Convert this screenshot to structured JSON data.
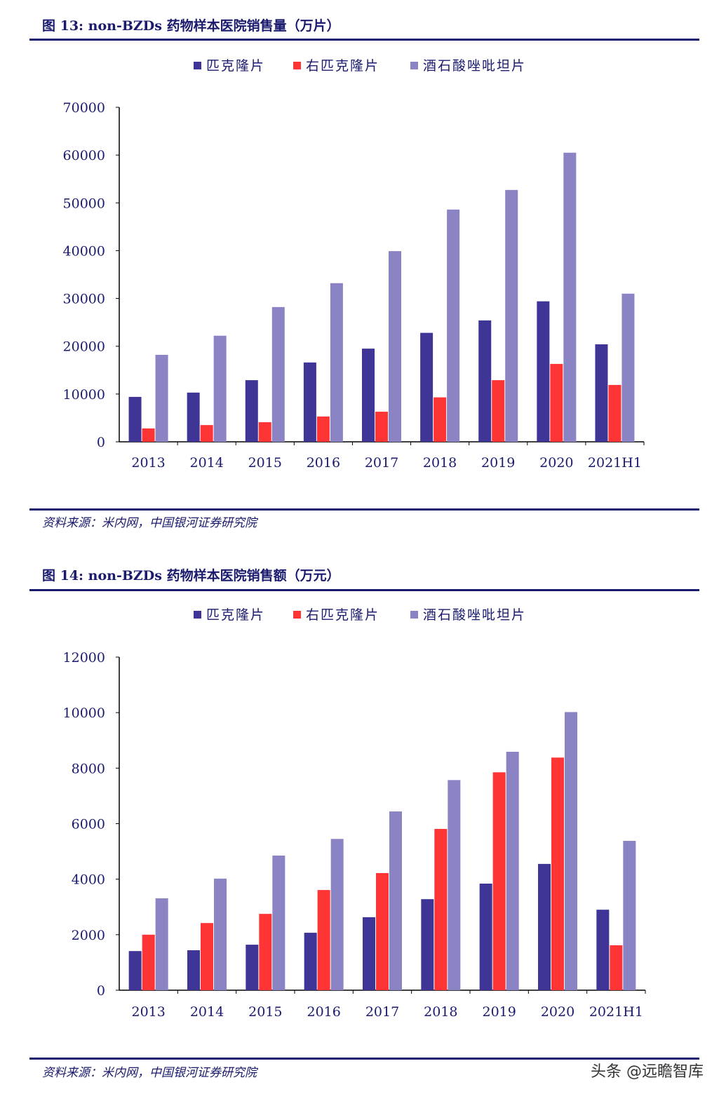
{
  "colors": {
    "series1": "#3f3597",
    "series2": "#ff3535",
    "series3": "#8b84c4",
    "text": "#1a1a6e"
  },
  "figures": [
    {
      "title": "图 13:  non-BZDs 药物样本医院销售量（万片）",
      "source": "资料来源：米内网，中国银河证券研究院"
    },
    {
      "title": "图 14:  non-BZDs 药物样本医院销售额（万元）",
      "source": "资料来源：米内网，中国银河证券研究院"
    }
  ],
  "watermark": "头条 @远瞻智库",
  "chart_data": [
    {
      "type": "bar",
      "title": "图 13:  non-BZDs 药物样本医院销售量（万片）",
      "categories": [
        "2013",
        "2014",
        "2015",
        "2016",
        "2017",
        "2018",
        "2019",
        "2020",
        "2021H1"
      ],
      "ylim": [
        0,
        70000
      ],
      "yticks": [
        0,
        10000,
        20000,
        30000,
        40000,
        50000,
        60000,
        70000
      ],
      "legend": "top",
      "grid": false,
      "series": [
        {
          "name": "匹克隆片",
          "values": [
            9400,
            10300,
            12900,
            16600,
            19500,
            22800,
            25400,
            29400,
            20400
          ]
        },
        {
          "name": "右匹克隆片",
          "values": [
            2800,
            3500,
            4100,
            5300,
            6300,
            9300,
            12900,
            16300,
            11900
          ]
        },
        {
          "name": "酒石酸唑吡坦片",
          "values": [
            18200,
            22200,
            28200,
            33200,
            39900,
            48600,
            52700,
            60500,
            31000
          ]
        }
      ]
    },
    {
      "type": "bar",
      "title": "图 14:  non-BZDs 药物样本医院销售额（万元）",
      "categories": [
        "2013",
        "2014",
        "2015",
        "2016",
        "2017",
        "2018",
        "2019",
        "2020",
        "2021H1"
      ],
      "ylim": [
        0,
        12000
      ],
      "yticks": [
        0,
        2000,
        4000,
        6000,
        8000,
        10000,
        12000
      ],
      "legend": "top",
      "grid": false,
      "series": [
        {
          "name": "匹克隆片",
          "values": [
            1410,
            1440,
            1640,
            2070,
            2630,
            3280,
            3840,
            4550,
            2900
          ]
        },
        {
          "name": "右匹克隆片",
          "values": [
            2000,
            2420,
            2750,
            3610,
            4220,
            5810,
            7850,
            8380,
            1620
          ]
        },
        {
          "name": "酒石酸唑吡坦片",
          "values": [
            3310,
            4020,
            4850,
            5450,
            6440,
            7570,
            8590,
            10020,
            5380
          ]
        }
      ]
    }
  ]
}
